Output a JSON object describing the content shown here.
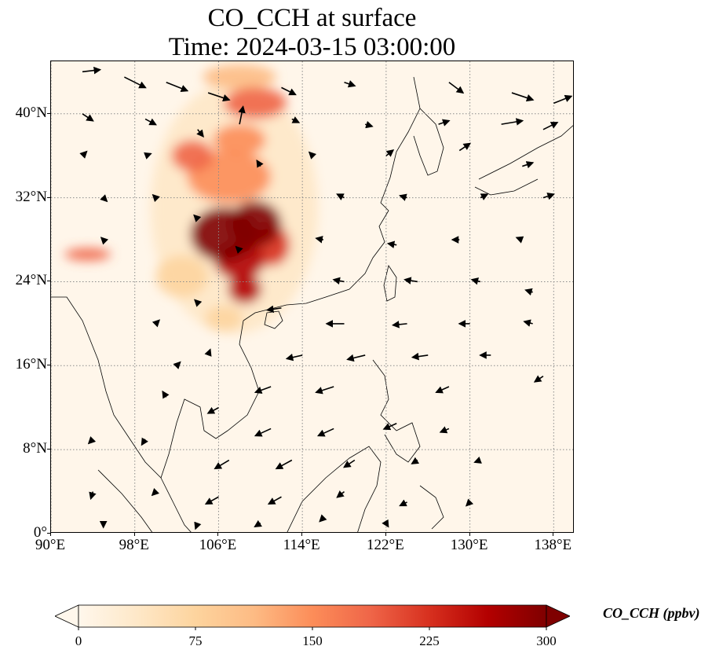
{
  "title": {
    "line1": "CO_CCH at surface",
    "line2": "Time: 2024-03-15 03:00:00"
  },
  "map": {
    "projection": "PlateCarree",
    "extent": {
      "lon": [
        90,
        140
      ],
      "lat": [
        0,
        45
      ]
    },
    "gridlines": {
      "style": "dotted",
      "color": "#8a8a8a"
    },
    "background_color": "#fff6ea"
  },
  "axes": {
    "x_ticks": [
      {
        "value": 90,
        "label": "90°E"
      },
      {
        "value": 98,
        "label": "98°E"
      },
      {
        "value": 106,
        "label": "106°E"
      },
      {
        "value": 114,
        "label": "114°E"
      },
      {
        "value": 122,
        "label": "122°E"
      },
      {
        "value": 130,
        "label": "130°E"
      },
      {
        "value": 138,
        "label": "138°E"
      }
    ],
    "y_ticks": [
      {
        "value": 0,
        "label": "0°"
      },
      {
        "value": 8,
        "label": "8°N"
      },
      {
        "value": 16,
        "label": "16°N"
      },
      {
        "value": 24,
        "label": "24°N"
      },
      {
        "value": 32,
        "label": "32°N"
      },
      {
        "value": 40,
        "label": "40°N"
      }
    ]
  },
  "colorbar": {
    "label": "CO_CCH (ppbv)",
    "colormap": "OrRd",
    "min": 0,
    "max": 300,
    "extend": "both",
    "ticks": [
      {
        "value": 0,
        "label": "0"
      },
      {
        "value": 75,
        "label": "75"
      },
      {
        "value": 150,
        "label": "150"
      },
      {
        "value": 225,
        "label": "225"
      },
      {
        "value": 300,
        "label": "300"
      }
    ],
    "stops": [
      "#fff7ec",
      "#fee8c8",
      "#fdd49e",
      "#fdbb84",
      "#fc8d59",
      "#ef6548",
      "#d7301f",
      "#b30000",
      "#7f0000"
    ]
  },
  "plumes": [
    {
      "name": "sichuan-basin-core",
      "lon": 106.5,
      "lat": 28.5,
      "r_lon": 3.2,
      "r_lat": 2.6,
      "value": 300
    },
    {
      "name": "chongqing-core",
      "lon": 109.5,
      "lat": 29.5,
      "r_lon": 2.5,
      "r_lat": 2.2,
      "value": 290
    },
    {
      "name": "guizhou-plume",
      "lon": 108.0,
      "lat": 26.0,
      "r_lon": 2.4,
      "r_lat": 1.8,
      "value": 260
    },
    {
      "name": "guangxi-plume",
      "lon": 108.5,
      "lat": 23.3,
      "r_lon": 1.6,
      "r_lat": 1.4,
      "value": 280
    },
    {
      "name": "hunan-plume",
      "lon": 111.0,
      "lat": 27.5,
      "r_lon": 1.8,
      "r_lat": 2.0,
      "value": 230
    },
    {
      "name": "shaanxi-plume",
      "lon": 107.0,
      "lat": 34.0,
      "r_lon": 4.0,
      "r_lat": 2.5,
      "value": 160
    },
    {
      "name": "gansu-plume",
      "lon": 103.5,
      "lat": 36.0,
      "r_lon": 2.0,
      "r_lat": 1.5,
      "value": 170
    },
    {
      "name": "ningxia-plume",
      "lon": 108.0,
      "lat": 37.5,
      "r_lon": 2.5,
      "r_lat": 1.5,
      "value": 150
    },
    {
      "name": "inner-mongolia-plume",
      "lon": 109.5,
      "lat": 41.0,
      "r_lon": 3.0,
      "r_lat": 1.5,
      "value": 190
    },
    {
      "name": "northern-band",
      "lon": 108.0,
      "lat": 43.5,
      "r_lon": 3.5,
      "r_lat": 1.2,
      "value": 120
    },
    {
      "name": "yunnan-haze",
      "lon": 102.5,
      "lat": 24.5,
      "r_lon": 2.5,
      "r_lat": 2.0,
      "value": 90
    },
    {
      "name": "himalaya-plume",
      "lon": 93.5,
      "lat": 26.6,
      "r_lon": 2.2,
      "r_lat": 0.6,
      "value": 170
    },
    {
      "name": "beibu-haze",
      "lon": 106.5,
      "lat": 20.5,
      "r_lon": 1.8,
      "r_lat": 1.2,
      "value": 70
    },
    {
      "name": "regional-haze",
      "lon": 107.5,
      "lat": 31.0,
      "r_lon": 8.0,
      "r_lat": 12.0,
      "value": 40
    }
  ],
  "wind_vectors": [
    {
      "lon": 93,
      "lat": 44,
      "u": 2.5,
      "v": 0.3
    },
    {
      "lon": 97,
      "lat": 43.5,
      "u": 3,
      "v": -1.5
    },
    {
      "lon": 101,
      "lat": 43,
      "u": 3,
      "v": -1.2
    },
    {
      "lon": 105,
      "lat": 42,
      "u": 3,
      "v": -1
    },
    {
      "lon": 112,
      "lat": 42.5,
      "u": 2,
      "v": -1
    },
    {
      "lon": 118,
      "lat": 43,
      "u": 1.5,
      "v": -0.5
    },
    {
      "lon": 128,
      "lat": 43,
      "u": 2,
      "v": -1.5
    },
    {
      "lon": 134,
      "lat": 42,
      "u": 3,
      "v": -1
    },
    {
      "lon": 138,
      "lat": 41,
      "u": 2.5,
      "v": 1
    },
    {
      "lon": 93,
      "lat": 40,
      "u": 1.5,
      "v": -1
    },
    {
      "lon": 99,
      "lat": 39.5,
      "u": 1.5,
      "v": -0.8
    },
    {
      "lon": 108,
      "lat": 39,
      "u": 0.5,
      "v": 2.5
    },
    {
      "lon": 113,
      "lat": 39.5,
      "u": 1,
      "v": -0.5
    },
    {
      "lon": 120,
      "lat": 39,
      "u": 1,
      "v": -0.3
    },
    {
      "lon": 127,
      "lat": 39,
      "u": 1.5,
      "v": 0.5
    },
    {
      "lon": 133,
      "lat": 39,
      "u": 3,
      "v": 0.5
    },
    {
      "lon": 137,
      "lat": 38.5,
      "u": 2,
      "v": 1
    },
    {
      "lon": 93,
      "lat": 36,
      "u": 0.6,
      "v": 0.6
    },
    {
      "lon": 99,
      "lat": 36,
      "u": 0.8,
      "v": 0.3
    },
    {
      "lon": 115,
      "lat": 36,
      "u": -0.5,
      "v": 0.5
    },
    {
      "lon": 122,
      "lat": 36,
      "u": 1,
      "v": 0.8
    },
    {
      "lon": 129,
      "lat": 36.5,
      "u": 1.5,
      "v": 1
    },
    {
      "lon": 135,
      "lat": 35,
      "u": 1.5,
      "v": 0.5
    },
    {
      "lon": 95,
      "lat": 32,
      "u": 0.5,
      "v": -0.5
    },
    {
      "lon": 100,
      "lat": 32,
      "u": -0.4,
      "v": 0.4
    },
    {
      "lon": 118,
      "lat": 32,
      "u": -1,
      "v": 0.5
    },
    {
      "lon": 124,
      "lat": 32,
      "u": -1,
      "v": 0.3
    },
    {
      "lon": 131,
      "lat": 32,
      "u": 1,
      "v": 0.5
    },
    {
      "lon": 137,
      "lat": 32,
      "u": 1.5,
      "v": 0.5
    },
    {
      "lon": 95,
      "lat": 28,
      "u": -0.3,
      "v": 0.3
    },
    {
      "lon": 116,
      "lat": 28,
      "u": -1,
      "v": 0.2
    },
    {
      "lon": 123,
      "lat": 27.5,
      "u": -1.2,
      "v": 0.2
    },
    {
      "lon": 129,
      "lat": 28,
      "u": -1,
      "v": 0
    },
    {
      "lon": 135,
      "lat": 28,
      "u": -0.8,
      "v": 0.3
    },
    {
      "lon": 118,
      "lat": 24,
      "u": -1.5,
      "v": 0.3
    },
    {
      "lon": 125,
      "lat": 24,
      "u": -1.8,
      "v": 0.3
    },
    {
      "lon": 131,
      "lat": 24,
      "u": -1.2,
      "v": 0.3
    },
    {
      "lon": 136,
      "lat": 23,
      "u": -1,
      "v": 0.3
    },
    {
      "lon": 112,
      "lat": 21.5,
      "u": -2,
      "v": -0.3
    },
    {
      "lon": 118,
      "lat": 20,
      "u": -2.5,
      "v": 0
    },
    {
      "lon": 124,
      "lat": 20,
      "u": -2,
      "v": -0.2
    },
    {
      "lon": 130,
      "lat": 20,
      "u": -1.5,
      "v": 0
    },
    {
      "lon": 136,
      "lat": 20,
      "u": -1.2,
      "v": 0.3
    },
    {
      "lon": 114,
      "lat": 17,
      "u": -2.2,
      "v": -0.5
    },
    {
      "lon": 120,
      "lat": 17,
      "u": -2.5,
      "v": -0.6
    },
    {
      "lon": 126,
      "lat": 17,
      "u": -2.2,
      "v": -0.3
    },
    {
      "lon": 132,
      "lat": 17,
      "u": -1.5,
      "v": 0
    },
    {
      "lon": 137,
      "lat": 15,
      "u": -1.2,
      "v": -0.8
    },
    {
      "lon": 111,
      "lat": 14,
      "u": -2.2,
      "v": -0.8
    },
    {
      "lon": 117,
      "lat": 14,
      "u": -2.5,
      "v": -0.8
    },
    {
      "lon": 128,
      "lat": 14,
      "u": -1.8,
      "v": -0.8
    },
    {
      "lon": 101,
      "lat": 13,
      "u": -0.5,
      "v": 0.8
    },
    {
      "lon": 106,
      "lat": 12,
      "u": -1.5,
      "v": -0.8
    },
    {
      "lon": 111,
      "lat": 10,
      "u": -2.2,
      "v": -1
    },
    {
      "lon": 117,
      "lat": 10,
      "u": -2.2,
      "v": -1
    },
    {
      "lon": 123,
      "lat": 10.5,
      "u": -1.8,
      "v": -0.8
    },
    {
      "lon": 128,
      "lat": 10,
      "u": -1.2,
      "v": -0.5
    },
    {
      "lon": 94,
      "lat": 9,
      "u": -0.6,
      "v": -0.6
    },
    {
      "lon": 99,
      "lat": 9,
      "u": -0.5,
      "v": -0.8
    },
    {
      "lon": 107,
      "lat": 7,
      "u": -2,
      "v": -1.2
    },
    {
      "lon": 113,
      "lat": 7,
      "u": -2.2,
      "v": -1.2
    },
    {
      "lon": 119,
      "lat": 7,
      "u": -1.5,
      "v": -1
    },
    {
      "lon": 125,
      "lat": 7,
      "u": -0.8,
      "v": -0.5
    },
    {
      "lon": 131,
      "lat": 7,
      "u": -0.8,
      "v": -0.3
    },
    {
      "lon": 94,
      "lat": 4,
      "u": -0.3,
      "v": -1
    },
    {
      "lon": 100,
      "lat": 4,
      "u": -0.5,
      "v": -0.5
    },
    {
      "lon": 106,
      "lat": 3.5,
      "u": -1.8,
      "v": -1
    },
    {
      "lon": 112,
      "lat": 3.5,
      "u": -1.8,
      "v": -1
    },
    {
      "lon": 118,
      "lat": 4,
      "u": -1,
      "v": -0.8
    },
    {
      "lon": 124,
      "lat": 3,
      "u": -1,
      "v": -0.5
    },
    {
      "lon": 130,
      "lat": 3,
      "u": -0.5,
      "v": -0.5
    },
    {
      "lon": 95,
      "lat": 1,
      "u": 0,
      "v": -0.6
    },
    {
      "lon": 104,
      "lat": 1,
      "u": -0.3,
      "v": -0.8
    },
    {
      "lon": 110,
      "lat": 1,
      "u": -0.8,
      "v": -0.5
    },
    {
      "lon": 116,
      "lat": 1.5,
      "u": -0.5,
      "v": -0.5
    },
    {
      "lon": 122,
      "lat": 1,
      "u": 0.3,
      "v": -0.5
    },
    {
      "lon": 104,
      "lat": 38.5,
      "u": 0.8,
      "v": -1
    },
    {
      "lon": 110,
      "lat": 35,
      "u": -0.5,
      "v": 0.8
    },
    {
      "lon": 104,
      "lat": 30,
      "u": -0.5,
      "v": 0.5
    },
    {
      "lon": 108,
      "lat": 27,
      "u": -0.5,
      "v": 0.5
    },
    {
      "lon": 104,
      "lat": 22,
      "u": -0.4,
      "v": 0.4
    },
    {
      "lon": 100,
      "lat": 20,
      "u": 0.5,
      "v": 0.5
    },
    {
      "lon": 105,
      "lat": 17,
      "u": 0.3,
      "v": 0.8
    },
    {
      "lon": 102,
      "lat": 16,
      "u": 0.5,
      "v": 0.5
    }
  ]
}
